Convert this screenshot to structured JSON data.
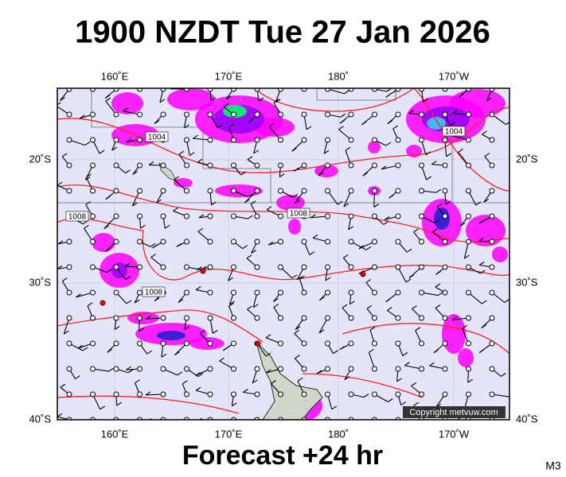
{
  "header": {
    "title": "1900 NZDT Tue 27 Jan 2026"
  },
  "map": {
    "top_labels": [
      "160˚E",
      "170˚E",
      "180˚",
      "170˚W"
    ],
    "bottom_labels": [
      "160˚E",
      "170˚E",
      "180˚",
      "170˚W"
    ],
    "left_labels": [
      "20˚S",
      "30˚S",
      "40˚S"
    ],
    "right_labels": [
      "20˚S",
      "30˚S",
      "40˚S"
    ],
    "contour_labels": [
      "1004",
      "1004",
      "1008",
      "1008",
      "1008"
    ],
    "copyright": "Copyright metvuw.com"
  },
  "footer": {
    "subtitle": "Forecast +24 hr",
    "model": "M3"
  }
}
